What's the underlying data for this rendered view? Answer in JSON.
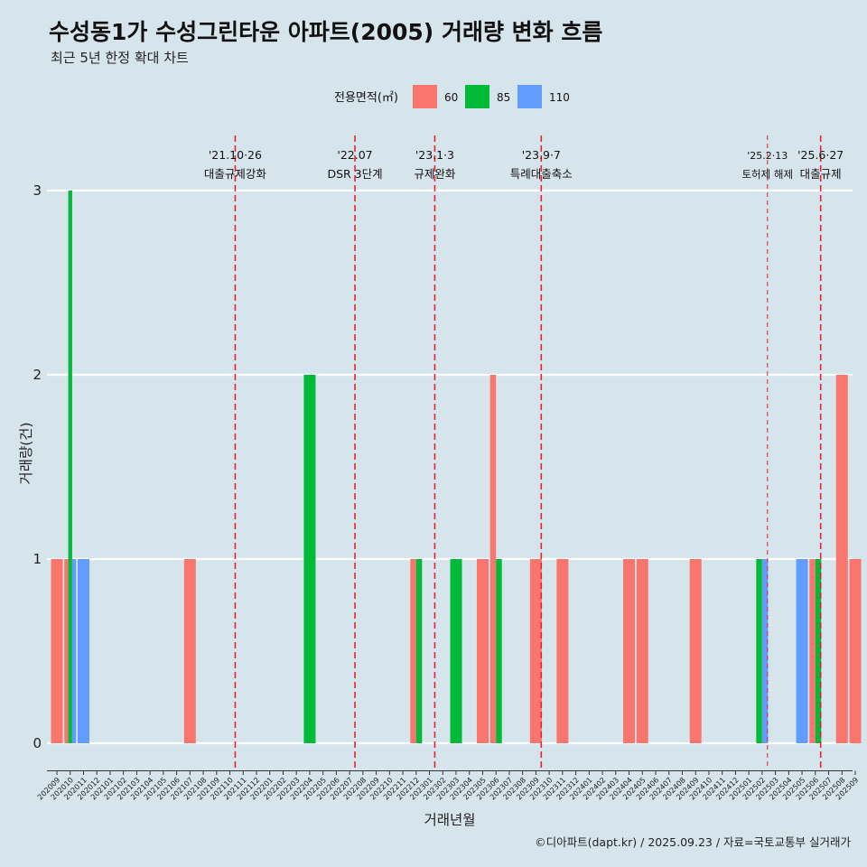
{
  "header": {
    "title": "수성동1가 수성그린타운 아파트(2005) 거래량 변화 흐름",
    "subtitle": "최근 5년 한정 확대 차트"
  },
  "caption": "©디아파트(dapt.kr) / 2025.09.23 / 자료=국토교통부 실거래가",
  "chart_data": {
    "type": "bar",
    "title": "수성동1가 수성그린타운 아파트(2005) 거래량 변화 흐름",
    "subtitle": "최근 5년 한정 확대 차트",
    "xlabel": "거래년월",
    "ylabel": "거래량(건)",
    "ylim": [
      0,
      3
    ],
    "yticks": [
      0,
      1,
      2,
      3
    ],
    "grid": true,
    "legend": {
      "title": "전용면적(㎡)",
      "position": "top",
      "entries": [
        {
          "name": "60",
          "color": "#f8766d"
        },
        {
          "name": "85",
          "color": "#00ba38"
        },
        {
          "name": "110",
          "color": "#619cff"
        }
      ]
    },
    "categories": [
      "202009",
      "202010",
      "202011",
      "202012",
      "202101",
      "202102",
      "202103",
      "202104",
      "202105",
      "202106",
      "202107",
      "202108",
      "202109",
      "202110",
      "202111",
      "202112",
      "202201",
      "202202",
      "202203",
      "202204",
      "202205",
      "202206",
      "202207",
      "202208",
      "202209",
      "202210",
      "202211",
      "202212",
      "202301",
      "202302",
      "202303",
      "202304",
      "202305",
      "202306",
      "202307",
      "202308",
      "202309",
      "202310",
      "202311",
      "202312",
      "202401",
      "202402",
      "202403",
      "202404",
      "202405",
      "202406",
      "202407",
      "202408",
      "202409",
      "202410",
      "202411",
      "202412",
      "202501",
      "202502",
      "202503",
      "202504",
      "202505",
      "202506",
      "202507",
      "202508",
      "202509"
    ],
    "bars": [
      {
        "month": "202009",
        "series": [
          "60"
        ],
        "value": 1
      },
      {
        "month": "202010",
        "series": [
          "60",
          "85",
          "110"
        ],
        "value": [
          1,
          3,
          1
        ]
      },
      {
        "month": "202011",
        "series": [
          "110"
        ],
        "value": 1
      },
      {
        "month": "202107",
        "series": [
          "60"
        ],
        "value": 1
      },
      {
        "month": "202204",
        "series": [
          "85"
        ],
        "value": 2
      },
      {
        "month": "202212",
        "series": [
          "60",
          "85"
        ],
        "value": [
          1,
          1
        ]
      },
      {
        "month": "202303",
        "series": [
          "85"
        ],
        "value": 1
      },
      {
        "month": "202305",
        "series": [
          "60"
        ],
        "value": 1
      },
      {
        "month": "202306",
        "series": [
          "60",
          "85"
        ],
        "value": [
          2,
          1
        ]
      },
      {
        "month": "202309",
        "series": [
          "60"
        ],
        "value": 1
      },
      {
        "month": "202311",
        "series": [
          "60"
        ],
        "value": 1
      },
      {
        "month": "202404",
        "series": [
          "60"
        ],
        "value": 1
      },
      {
        "month": "202405",
        "series": [
          "60"
        ],
        "value": 1
      },
      {
        "month": "202409",
        "series": [
          "60"
        ],
        "value": 1
      },
      {
        "month": "202502",
        "series": [
          "85",
          "110"
        ],
        "value": [
          1,
          1
        ]
      },
      {
        "month": "202505",
        "series": [
          "110"
        ],
        "value": 1
      },
      {
        "month": "202506",
        "series": [
          "60",
          "85"
        ],
        "value": [
          1,
          1
        ]
      },
      {
        "month": "202508",
        "series": [
          "60"
        ],
        "value": 2
      },
      {
        "month": "202509",
        "series": [
          "60"
        ],
        "value": 1
      }
    ],
    "events": [
      {
        "date": "'21.10·26",
        "label": "대출규제강화",
        "month_index": 13.4,
        "emphasis": true
      },
      {
        "date": "'22.07",
        "label": "DSR 3단계",
        "month_index": 22.4,
        "emphasis": true
      },
      {
        "date": "'23.1·3",
        "label": "규제완화",
        "month_index": 28.4,
        "emphasis": true
      },
      {
        "date": "'23.9·7",
        "label": "특례대출축소",
        "month_index": 36.4,
        "emphasis": true
      },
      {
        "date": "'25.2·13",
        "label": "토허제 해제",
        "month_index": 53.4,
        "emphasis": false
      },
      {
        "date": "'25.6·27",
        "label": "대출규제",
        "month_index": 57.4,
        "emphasis": true
      }
    ]
  }
}
